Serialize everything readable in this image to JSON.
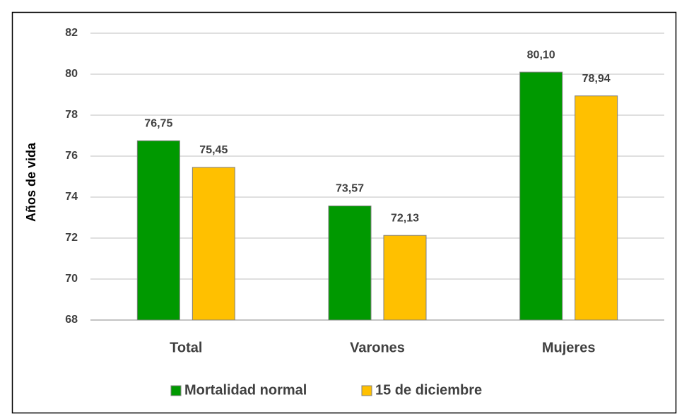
{
  "chart_data": {
    "type": "bar",
    "y_label": "Años de vida",
    "categories": [
      "Total",
      "Varones",
      "Mujeres"
    ],
    "series": [
      {
        "name": "Mortalidad normal",
        "color": "#009900",
        "values": [
          76.75,
          73.57,
          80.1
        ],
        "value_labels": [
          "76,75",
          "73,57",
          "80,10"
        ]
      },
      {
        "name": "15 de diciembre",
        "color": "#ffc000",
        "values": [
          75.45,
          72.13,
          78.94
        ],
        "value_labels": [
          "75,45",
          "72,13",
          "78,94"
        ]
      }
    ],
    "ylim": [
      68,
      82
    ],
    "yticks": [
      68,
      70,
      72,
      74,
      76,
      78,
      80,
      82
    ],
    "grid": true,
    "legend": "bottom"
  }
}
